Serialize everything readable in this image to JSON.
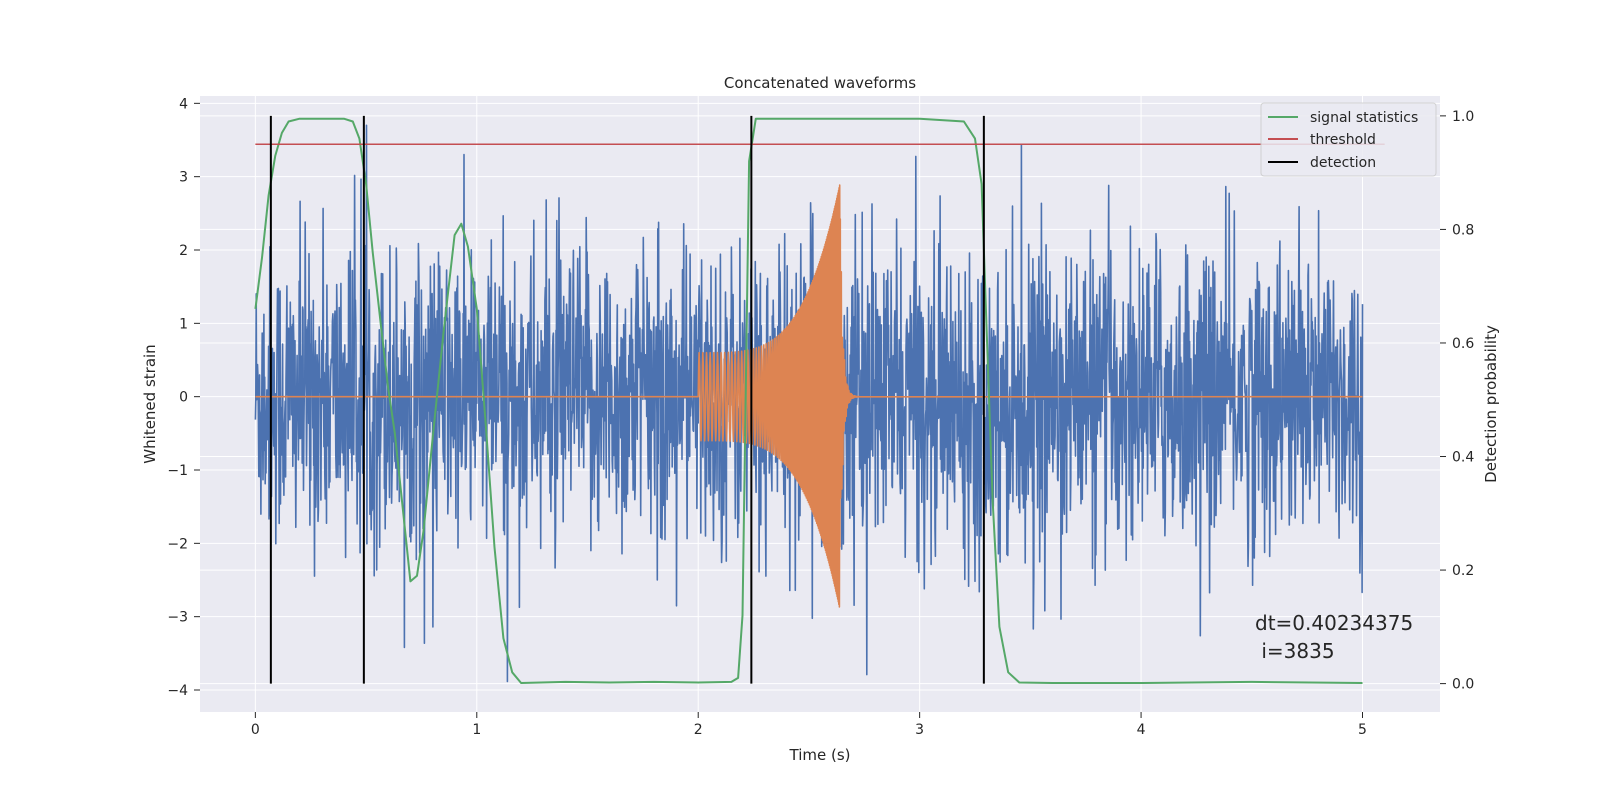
{
  "chart_data": {
    "type": "line",
    "title": "Concatenated waveforms",
    "xlabel": "Time (s)",
    "ylabel": "Whitened strain",
    "ylabel_right": "Detection probability",
    "xlim": [
      -0.25,
      5.35
    ],
    "ylim": [
      -4.3,
      4.1
    ],
    "ylim_right": [
      -0.05,
      1.035
    ],
    "x_ticks": [
      0,
      1,
      2,
      3,
      4,
      5
    ],
    "y_ticks": [
      -4,
      -3,
      -2,
      -1,
      0,
      1,
      2,
      3,
      4
    ],
    "y_ticks_right": [
      0.0,
      0.2,
      0.4,
      0.6,
      0.8,
      1.0
    ],
    "x_tick_labels": [
      "0",
      "1",
      "2",
      "3",
      "4",
      "5"
    ],
    "y_tick_labels": [
      "−4",
      "−3",
      "−2",
      "−1",
      "0",
      "1",
      "2",
      "3",
      "4"
    ],
    "y_tick_labels_right": [
      "0.0",
      "0.2",
      "0.4",
      "0.6",
      "0.8",
      "1.0"
    ],
    "grid": true,
    "legend_position": "top-right",
    "legend": [
      {
        "label": "signal statistics",
        "color": "#55a868"
      },
      {
        "label": "threshold",
        "color": "#c44e52"
      },
      {
        "label": "detection",
        "color": "#000000"
      }
    ],
    "colors": {
      "strain": "#4c72b0",
      "injection": "#dd8452",
      "signal_statistics": "#55a868",
      "threshold": "#c44e52",
      "detection": "#000000",
      "axes_background": "#eaeaf2",
      "grid": "#ffffff"
    },
    "series": [
      {
        "axis": "left",
        "color": "#4c72b0",
        "description": "noisy whitened strain, amplitude roughly +/-2.5 with spikes to ~3.7",
        "x_range": [
          0,
          5
        ],
        "typical_amplitude": 1.4,
        "extreme_min": -3.9,
        "extreme_max": 3.7
      },
      {
        "axis": "left",
        "color": "#dd8452",
        "description": "injected chirp signal, zero except between t=2.0 and t=2.65",
        "x_range": [
          0,
          5
        ],
        "chirp_start": 2.0,
        "chirp_peak": 2.64,
        "start_amplitude": 0.6,
        "peak_amplitude": 2.9
      },
      {
        "name": "signal statistics",
        "axis": "right",
        "color": "#55a868",
        "x": [
          0.0,
          0.03,
          0.06,
          0.09,
          0.12,
          0.15,
          0.2,
          0.3,
          0.4,
          0.44,
          0.47,
          0.5,
          0.53,
          0.57,
          0.6,
          0.63,
          0.66,
          0.7,
          0.73,
          0.76,
          0.8,
          0.85,
          0.9,
          0.93,
          0.96,
          1.0,
          1.04,
          1.08,
          1.12,
          1.16,
          1.2,
          1.4,
          1.6,
          1.8,
          2.0,
          2.15,
          2.18,
          2.2,
          2.23,
          2.26,
          2.3,
          2.5,
          3.0,
          3.2,
          3.25,
          3.28,
          3.3,
          3.33,
          3.36,
          3.4,
          3.45,
          3.6,
          4.0,
          4.5,
          5.0
        ],
        "values": [
          0.66,
          0.75,
          0.86,
          0.93,
          0.97,
          0.99,
          0.995,
          0.995,
          0.995,
          0.99,
          0.96,
          0.88,
          0.76,
          0.62,
          0.52,
          0.44,
          0.33,
          0.18,
          0.19,
          0.27,
          0.43,
          0.62,
          0.79,
          0.81,
          0.77,
          0.66,
          0.46,
          0.24,
          0.08,
          0.02,
          0.001,
          0.003,
          0.002,
          0.003,
          0.002,
          0.003,
          0.01,
          0.12,
          0.92,
          0.995,
          0.995,
          0.995,
          0.995,
          0.99,
          0.96,
          0.88,
          0.65,
          0.32,
          0.1,
          0.02,
          0.002,
          0.001,
          0.001,
          0.003,
          0.001
        ]
      },
      {
        "name": "threshold",
        "axis": "right",
        "color": "#c44e52",
        "x": [
          0,
          5.1
        ],
        "values": [
          0.95,
          0.95
        ]
      }
    ],
    "detections": {
      "name": "detection",
      "color": "#000000",
      "x": [
        0.07,
        0.49,
        2.24,
        3.29
      ],
      "range_right": [
        0.0,
        1.0
      ]
    }
  },
  "annotation": {
    "line1": "dt=0.40234375",
    "line2": " i=3835"
  }
}
